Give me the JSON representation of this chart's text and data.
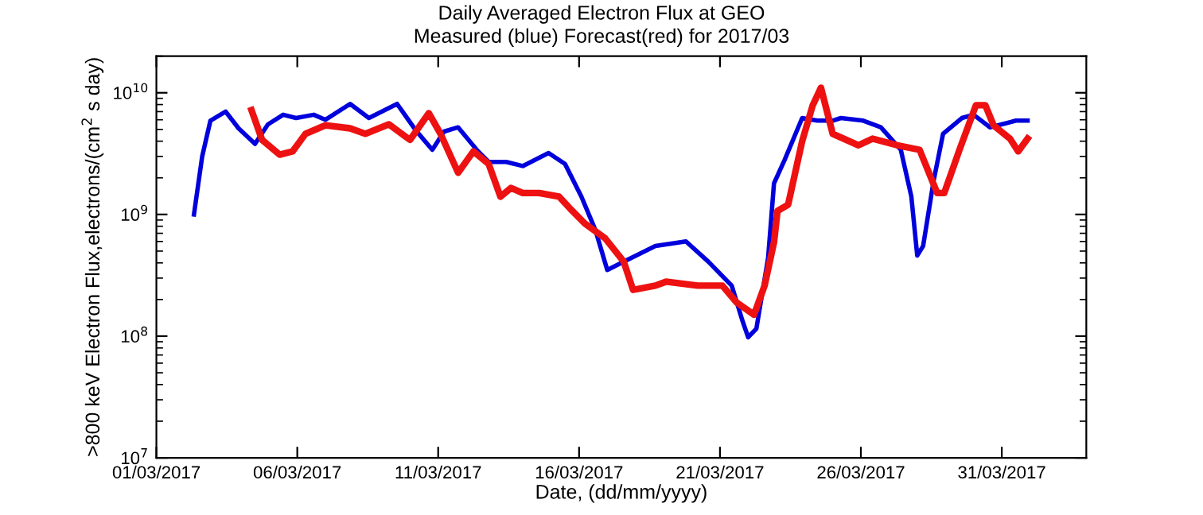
{
  "chart_data": {
    "type": "line",
    "title": "Daily Averaged Electron Flux at GEO",
    "subtitle": "Measured (blue) Forecast(red) for 2017/03",
    "xlabel": "Date, (dd/mm/yyyy)",
    "ylabel": ">800 keV Electron Flux,electrons/(cm$^{2}$ s day)",
    "log": "y",
    "grid": false,
    "legend": false,
    "line_style": "solid",
    "xlim": [
      "2017-03-01",
      "2017-04-03"
    ],
    "xticks": [
      {
        "value": "2017-03-01",
        "label": "01/03/2017"
      },
      {
        "value": "2017-03-06",
        "label": "06/03/2017"
      },
      {
        "value": "2017-03-11",
        "label": "11/03/2017"
      },
      {
        "value": "2017-03-16",
        "label": "16/03/2017"
      },
      {
        "value": "2017-03-21",
        "label": "21/03/2017"
      },
      {
        "value": "2017-03-26",
        "label": "26/03/2017"
      },
      {
        "value": "2017-03-31",
        "label": "31/03/2017"
      }
    ],
    "ylim": [
      10000000.0,
      20000000000.0
    ],
    "yticks": [
      {
        "value": 10000000.0,
        "label": "10$^{7}$"
      },
      {
        "value": 100000000.0,
        "label": "10$^{8}$"
      },
      {
        "value": 1000000000.0,
        "label": "10$^{9}$"
      },
      {
        "value": 10000000000.0,
        "label": "10$^{10}$"
      }
    ],
    "series": [
      {
        "color": "#0000dd",
        "x": [
          "2017-03-02T08:00",
          "2017-03-02T15:00",
          "2017-03-02T22:00",
          "2017-03-03T11:00",
          "2017-03-03T22:00",
          "2017-03-04T12:00",
          "2017-03-04T23:00",
          "2017-03-05T12:00",
          "2017-03-05T23:00",
          "2017-03-06T14:00",
          "2017-03-07T00:00",
          "2017-03-07T21:00",
          "2017-03-08T13:00",
          "2017-03-09T13:00",
          "2017-03-10T05:00",
          "2017-03-10T19:00",
          "2017-03-11T05:00",
          "2017-03-11T17:00",
          "2017-03-12T10:00",
          "2017-03-12T19:00",
          "2017-03-13T10:00",
          "2017-03-14T00:00",
          "2017-03-14T22:00",
          "2017-03-15T12:00",
          "2017-03-16T02:00",
          "2017-03-16T14:00",
          "2017-03-17T00:00",
          "2017-03-17T12:00",
          "2017-03-18T17:00",
          "2017-03-19T19:00",
          "2017-03-20T14:00",
          "2017-03-21T10:00",
          "2017-03-21T19:00",
          "2017-03-22T00:00",
          "2017-03-22T07:00",
          "2017-03-22T17:00",
          "2017-03-22T22:00",
          "2017-03-23T07:00",
          "2017-03-23T22:00",
          "2017-03-24T11:00",
          "2017-03-25T00:00",
          "2017-03-25T07:00",
          "2017-03-26T02:00",
          "2017-03-26T17:00",
          "2017-03-27T10:00",
          "2017-03-27T19:00",
          "2017-03-28T00:00",
          "2017-03-28T05:00",
          "2017-03-28T14:00",
          "2017-03-28T22:00",
          "2017-03-29T14:00",
          "2017-03-30T00:00",
          "2017-03-30T14:00",
          "2017-03-31T12:00",
          "2017-03-31T22:00"
        ],
        "values": [
          1000000000.0,
          3000000000.0,
          5900000000.0,
          7000000000.0,
          5100000000.0,
          3800000000.0,
          5500000000.0,
          6600000000.0,
          6200000000.0,
          6600000000.0,
          6000000000.0,
          8100000000.0,
          6200000000.0,
          8100000000.0,
          4900000000.0,
          3400000000.0,
          4800000000.0,
          5200000000.0,
          3300000000.0,
          2700000000.0,
          2700000000.0,
          2500000000.0,
          3200000000.0,
          2600000000.0,
          1400000000.0,
          740000000.0,
          350000000.0,
          400000000.0,
          550000000.0,
          600000000.0,
          410000000.0,
          260000000.0,
          135000000.0,
          98000000.0,
          115000000.0,
          440000000.0,
          1800000000.0,
          2800000000.0,
          6200000000.0,
          5900000000.0,
          5900000000.0,
          6200000000.0,
          5900000000.0,
          5200000000.0,
          3400000000.0,
          1400000000.0,
          460000000.0,
          550000000.0,
          1900000000.0,
          4600000000.0,
          6200000000.0,
          6600000000.0,
          5200000000.0,
          5900000000.0,
          5900000000.0
        ]
      },
      {
        "color": "#ee1111",
        "x": [
          "2017-03-04T09:00",
          "2017-03-04T18:00",
          "2017-03-05T09:00",
          "2017-03-05T20:00",
          "2017-03-06T07:00",
          "2017-03-07T00:00",
          "2017-03-07T21:00",
          "2017-03-08T10:00",
          "2017-03-09T06:00",
          "2017-03-10T00:00",
          "2017-03-10T16:00",
          "2017-03-11T02:00",
          "2017-03-11T17:00",
          "2017-03-12T06:00",
          "2017-03-12T19:00",
          "2017-03-13T05:00",
          "2017-03-13T14:00",
          "2017-03-14T00:00",
          "2017-03-14T14:00",
          "2017-03-15T07:00",
          "2017-03-15T17:00",
          "2017-03-16T05:00",
          "2017-03-16T22:00",
          "2017-03-17T14:00",
          "2017-03-17T22:00",
          "2017-03-18T17:00",
          "2017-03-19T02:00",
          "2017-03-20T05:00",
          "2017-03-21T02:00",
          "2017-03-21T14:00",
          "2017-03-22T05:00",
          "2017-03-22T14:00",
          "2017-03-22T22:00",
          "2017-03-23T01:00",
          "2017-03-23T10:00",
          "2017-03-23T22:00",
          "2017-03-24T07:00",
          "2017-03-24T14:00",
          "2017-03-25T00:00",
          "2017-03-25T22:00",
          "2017-03-26T10:00",
          "2017-03-27T07:00",
          "2017-03-28T02:00",
          "2017-03-28T17:00",
          "2017-03-28T23:00",
          "2017-03-29T12:00",
          "2017-03-30T02:00",
          "2017-03-30T10:00",
          "2017-03-30T17:00",
          "2017-03-31T07:00",
          "2017-03-31T14:00",
          "2017-03-31T22:00"
        ],
        "values": [
          7200000000.0,
          4100000000.0,
          3100000000.0,
          3300000000.0,
          4600000000.0,
          5400000000.0,
          5100000000.0,
          4600000000.0,
          5500000000.0,
          4100000000.0,
          6800000000.0,
          4600000000.0,
          2200000000.0,
          3300000000.0,
          2600000000.0,
          1400000000.0,
          1650000000.0,
          1500000000.0,
          1500000000.0,
          1400000000.0,
          1100000000.0,
          840000000.0,
          640000000.0,
          410000000.0,
          240000000.0,
          260000000.0,
          280000000.0,
          260000000.0,
          260000000.0,
          190000000.0,
          150000000.0,
          260000000.0,
          590000000.0,
          1070000000.0,
          1200000000.0,
          4000000000.0,
          7900000000.0,
          11000000000.0,
          4600000000.0,
          3700000000.0,
          4200000000.0,
          3700000000.0,
          3400000000.0,
          1500000000.0,
          1500000000.0,
          3400000000.0,
          7900000000.0,
          7900000000.0,
          5400000000.0,
          4200000000.0,
          3300000000.0,
          4200000000.0
        ]
      }
    ]
  }
}
